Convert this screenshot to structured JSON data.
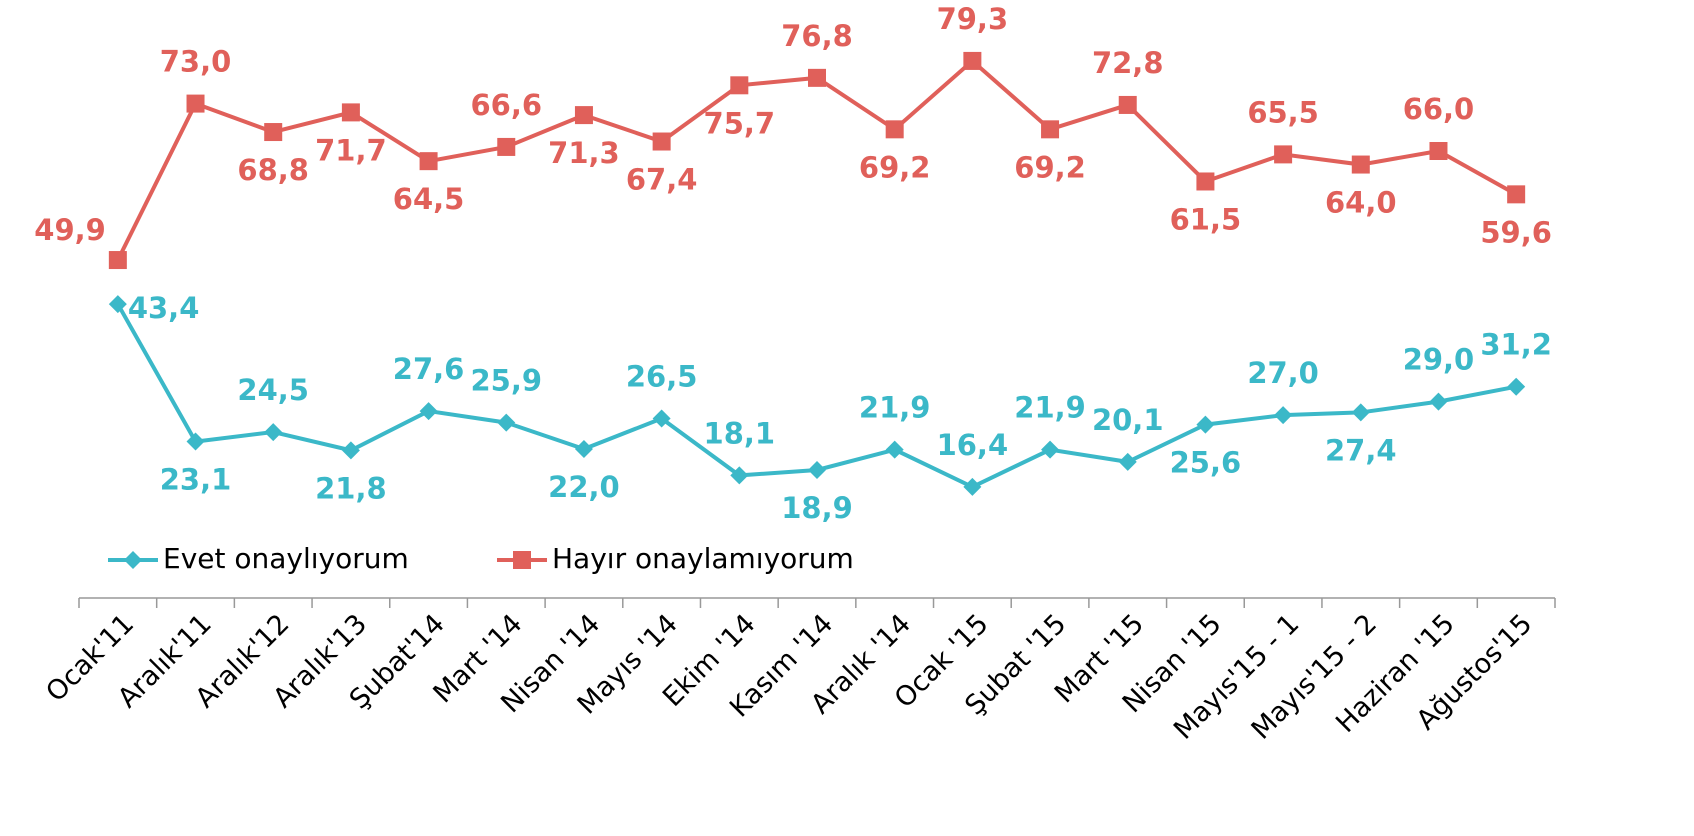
{
  "chart_data": {
    "type": "line",
    "categories": [
      "Ocak'11",
      "Aralık'11",
      "Aralık'12",
      "Aralık'13",
      "Şubat'14",
      "Mart '14",
      "Nisan '14",
      "Mayıs '14",
      "Ekim '14",
      "Kasım '14",
      "Aralık '14",
      "Ocak '15",
      "Şubat '15",
      "Mart '15",
      "Nisan '15",
      "Mayıs'15 - 1",
      "Mayıs'15 - 2",
      "Haziran '15",
      "Ağustos'15"
    ],
    "series": [
      {
        "name": "Evet onaylıyorum",
        "color": "#3bb8c8",
        "marker": "diamond",
        "values": [
          43.4,
          23.1,
          24.5,
          21.8,
          27.6,
          25.9,
          22.0,
          26.5,
          18.1,
          18.9,
          21.9,
          16.4,
          21.9,
          20.1,
          25.6,
          27.0,
          27.4,
          29.0,
          31.2
        ],
        "value_labels": [
          "43,4",
          "23,1",
          "24,5",
          "21,8",
          "27,6",
          "25,9",
          "22,0",
          "26,5",
          "18,1",
          "18,9",
          "21,9",
          "16,4",
          "21,9",
          "20,1",
          "25,6",
          "27,0",
          "27,4",
          "29,0",
          "31,2"
        ]
      },
      {
        "name": "Hayır onaylamıyorum",
        "color": "#e0605a",
        "marker": "square",
        "values": [
          49.9,
          73.0,
          68.8,
          71.7,
          64.5,
          66.6,
          71.3,
          67.4,
          75.7,
          76.8,
          69.2,
          79.3,
          69.2,
          72.8,
          61.5,
          65.5,
          64.0,
          66.0,
          59.6
        ],
        "value_labels": [
          "49,9",
          "73,0",
          "68,8",
          "71,7",
          "64,5",
          "66,6",
          "71,3",
          "67,4",
          "75,7",
          "76,8",
          "69,2",
          "79,3",
          "69,2",
          "72,8",
          "61,5",
          "65,5",
          "64,0",
          "66,0",
          "59,6"
        ]
      }
    ],
    "ylim": [
      0,
      88
    ],
    "grid": false,
    "legend": "bottom-left"
  }
}
